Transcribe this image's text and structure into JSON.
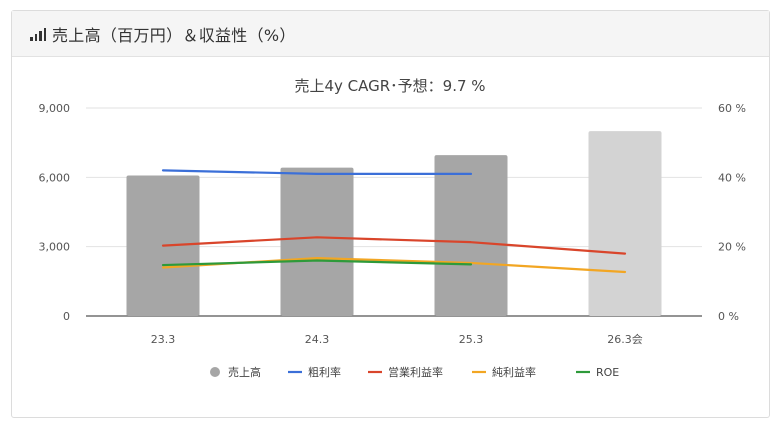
{
  "header": {
    "title": "売上高（百万円）＆収益性（%）",
    "icon": "bar-chart-icon"
  },
  "chart_data": {
    "type": "bar",
    "title": "売上4y CAGR･予想：9.7 %",
    "categories": [
      "23.3",
      "24.3",
      "25.3",
      "26.3会"
    ],
    "left_axis": {
      "ylim": [
        0,
        9000
      ],
      "ticks": [
        "0",
        "3,000",
        "6,000",
        "9,000"
      ]
    },
    "right_axis": {
      "ylim": [
        0,
        60
      ],
      "ticks": [
        "0 %",
        "20 %",
        "40 %",
        "60 %"
      ]
    },
    "bars": {
      "name": "売上高",
      "values": [
        6080,
        6420,
        6960,
        8000
      ],
      "colors": [
        "#a6a6a6",
        "#a6a6a6",
        "#a6a6a6",
        "#d3d3d3"
      ]
    },
    "lines": [
      {
        "name": "粗利率",
        "color": "#3b6fd8",
        "values": [
          42.0,
          41.0,
          41.0,
          null
        ]
      },
      {
        "name": "営業利益率",
        "color": "#d9452b",
        "values": [
          20.3,
          22.7,
          21.3,
          18.0
        ]
      },
      {
        "name": "純利益率",
        "color": "#f2a623",
        "values": [
          14.0,
          16.7,
          15.3,
          12.7
        ]
      },
      {
        "name": "ROE",
        "color": "#2e9a3a",
        "values": [
          14.7,
          16.0,
          14.9,
          null
        ]
      }
    ],
    "legend": [
      {
        "label": "売上高",
        "marker": "circle",
        "color": "#a6a6a6"
      },
      {
        "label": "粗利率",
        "marker": "line",
        "color": "#3b6fd8"
      },
      {
        "label": "営業利益率",
        "marker": "line",
        "color": "#d9452b"
      },
      {
        "label": "純利益率",
        "marker": "line",
        "color": "#f2a623"
      },
      {
        "label": "ROE",
        "marker": "line",
        "color": "#2e9a3a"
      }
    ],
    "legend_position": "bottom",
    "grid": true
  }
}
